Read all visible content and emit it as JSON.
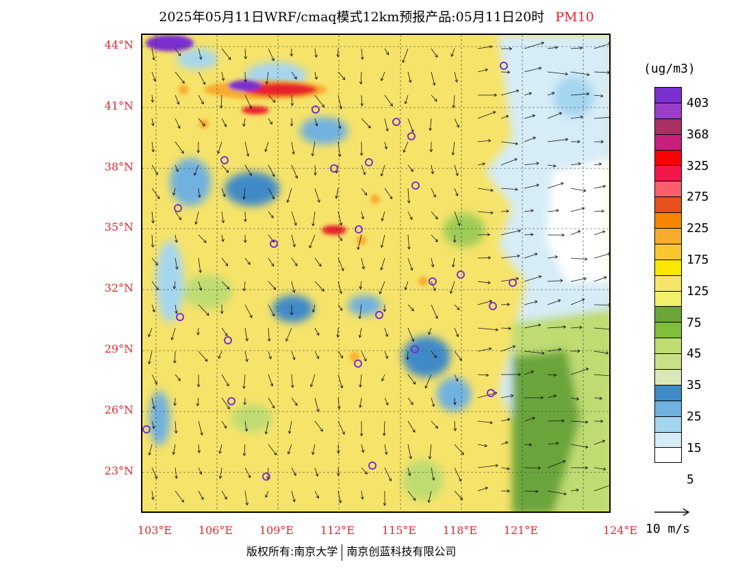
{
  "title": {
    "text": "2025年05月11日WRF/cmaq模式12km预报产品:05月11日20时",
    "variable": "PM10"
  },
  "map": {
    "lat_labels": [
      "44°N",
      "41°N",
      "38°N",
      "35°N",
      "32°N",
      "29°N",
      "26°N",
      "23°N"
    ],
    "lon_labels": [
      "103°E",
      "106°E",
      "109°E",
      "112°E",
      "115°E",
      "118°E",
      "121°E",
      "124°E"
    ],
    "colors": {
      "sea": "#ffffff",
      "low": "#d6ecf7",
      "blue1": "#a5d6f0",
      "blue2": "#6fb1df",
      "blue3": "#3f8ac7",
      "green_light": "#dbe7b8",
      "green1": "#bedc72",
      "green2": "#9fcc56",
      "green3": "#6ba53a",
      "yellow1": "#f2f06a",
      "yellow2": "#f6e36a",
      "orange": "#f8ac2d",
      "red": "#e8242b",
      "purple": "#7b2fcf"
    }
  },
  "colorbar": {
    "unit": "(ug/m3)",
    "labels": [
      "403",
      "368",
      "325",
      "275",
      "225",
      "175",
      "125",
      "75",
      "45",
      "35",
      "25",
      "15",
      "5"
    ],
    "colors": [
      "#7b2fcf",
      "#9a3ec9",
      "#a83062",
      "#c81f7e",
      "#fb0000",
      "#f5164c",
      "#fb5f6c",
      "#e85020",
      "#f88500",
      "#f8ac2d",
      "#f9c632",
      "#fbe600",
      "#f6e36a",
      "#f2f06a",
      "#6ba53a",
      "#7fbf3c",
      "#bedc72",
      "#c9e088",
      "#dbe7b8",
      "#3f8ac7",
      "#6fb1df",
      "#a5d6f0",
      "#d6ecf7",
      "#ffffff"
    ]
  },
  "wind_reference": {
    "label": "10 m/s"
  },
  "copyright": {
    "left": "版权所有:南京大学",
    "right": "南京创蓝科技有限公司"
  }
}
